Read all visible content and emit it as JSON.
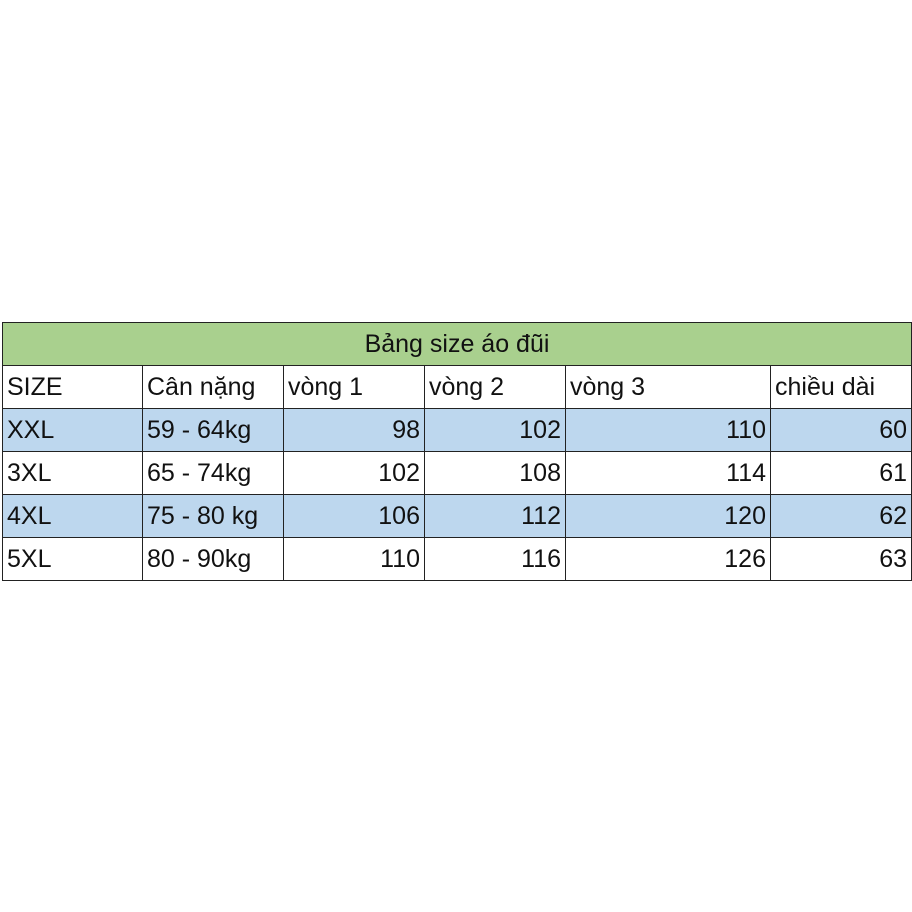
{
  "table": {
    "title": "Bảng size áo đũi",
    "header": [
      "SIZE",
      "Cân nặng",
      "vòng 1",
      "vòng 2",
      "vòng 3",
      "chiều dài"
    ],
    "rows": [
      [
        "XXL",
        "59 - 64kg",
        98,
        102,
        110,
        60
      ],
      [
        "3XL",
        "65 - 74kg",
        102,
        108,
        114,
        61
      ],
      [
        "4XL",
        "75 - 80 kg",
        106,
        112,
        120,
        62
      ],
      [
        "5XL",
        "80 - 90kg",
        110,
        116,
        126,
        63
      ]
    ]
  }
}
